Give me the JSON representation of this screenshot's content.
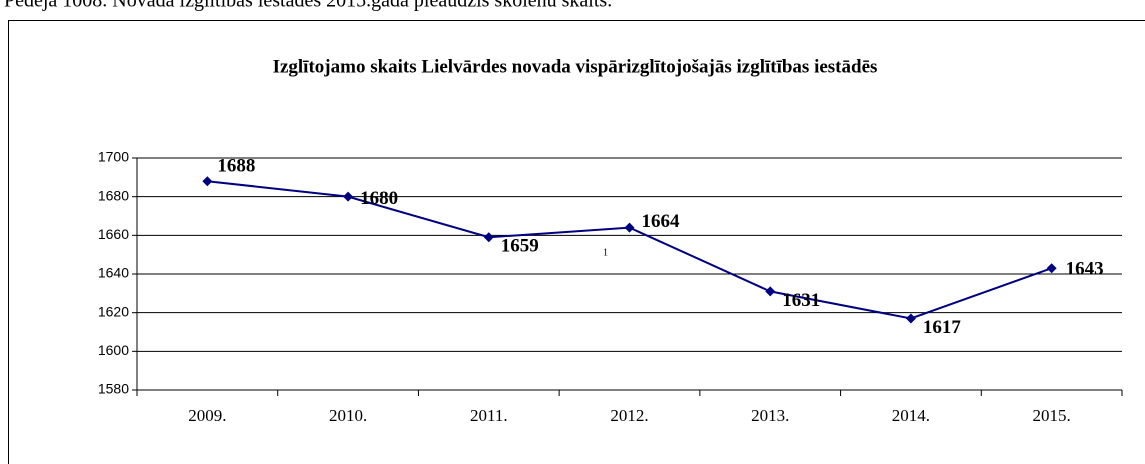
{
  "header_text": "Pēdējā 1008. Novada izglītības iestādes 2015.gadā pieaudzis skolēnu skaits.",
  "chart_data": {
    "type": "line",
    "title": "Izglītojamo skaits Lielvārdes novada vispārizglītojošajās izglītības iestādēs",
    "categories": [
      "2009.",
      "2010.",
      "2011.",
      "2012.",
      "2013.",
      "2014.",
      "2015."
    ],
    "values": [
      1688,
      1680,
      1659,
      1664,
      1631,
      1617,
      1643
    ],
    "color": "#000080",
    "ylim": [
      1580,
      1700
    ],
    "yticks": [
      1580,
      1600,
      1620,
      1640,
      1660,
      1680,
      1700
    ],
    "grid": true,
    "annotation": "1"
  }
}
